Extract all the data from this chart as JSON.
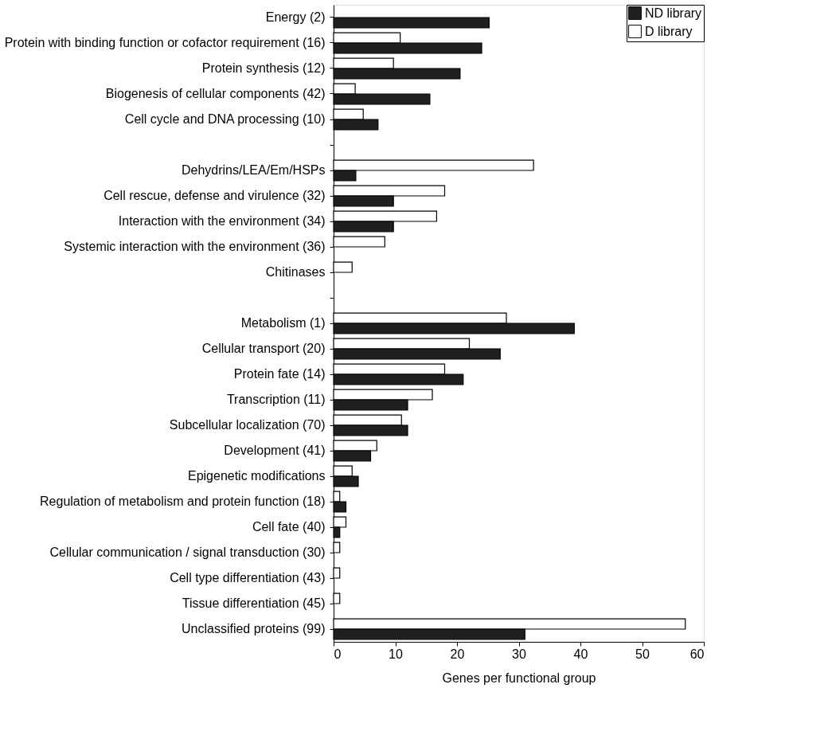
{
  "chart_data": {
    "type": "bar",
    "orientation": "horizontal",
    "xlabel": "Genes per functional group",
    "categories": [
      "Energy (2)",
      "Protein with binding function or cofactor requirement (16)",
      "Protein synthesis (12)",
      "Biogenesis of cellular components (42)",
      "Cell cycle and DNA processing (10)",
      null,
      "Dehydrins/LEA/Em/HSPs",
      "Cell rescue, defense and virulence (32)",
      "Interaction with the environment (34)",
      "Systemic interaction with the environment (36)",
      "Chitinases",
      null,
      "Metabolism (1)",
      "Cellular transport (20)",
      "Protein fate (14)",
      "Transcription (11)",
      "Subcellular localization (70)",
      "Development (41)",
      "Epigenetic modifications",
      "Regulation of metabolism and protein function (18)",
      "Cell fate (40)",
      "Cellular communication / signal transduction (30)",
      "Cell type differentiation (43)",
      "Tissue differentiation (45)",
      "Unclassified proteins (99)"
    ],
    "series": [
      {
        "name": "D library",
        "color": "#ffffff",
        "values": [
          null,
          10.8,
          9.7,
          3.5,
          4.8,
          null,
          32.4,
          18,
          16.7,
          8.3,
          3,
          null,
          28,
          22,
          18,
          16,
          11,
          7,
          3,
          1,
          2,
          1,
          1,
          1,
          57
        ]
      },
      {
        "name": "ND library",
        "color": "#231f20",
        "values": [
          25.2,
          24,
          20.5,
          15.6,
          7.2,
          null,
          3.6,
          9.7,
          9.7,
          null,
          null,
          null,
          39,
          27,
          21,
          12,
          12,
          6,
          4,
          2,
          1,
          null,
          null,
          null,
          31
        ]
      }
    ],
    "xlim": [
      0,
      60
    ],
    "xticks": [
      0,
      10,
      20,
      30,
      40,
      50,
      60
    ],
    "grid": false,
    "legend": "top right"
  }
}
